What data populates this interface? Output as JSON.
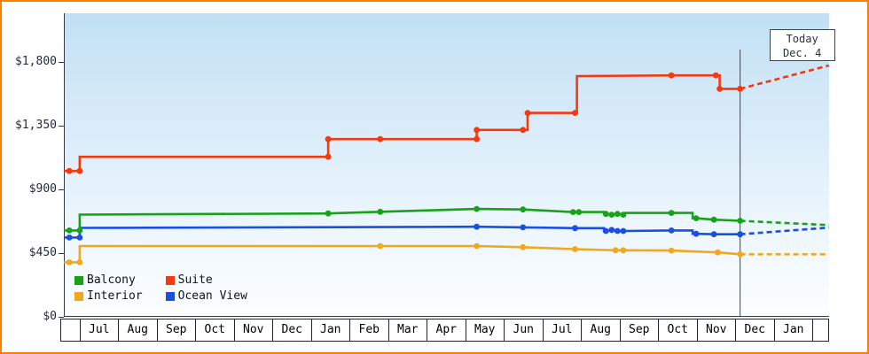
{
  "figure": {
    "border_color": "#ff7d00"
  },
  "chart_data": {
    "type": "line",
    "description": "Cruise cabin price history by category with dashed price forecast after today",
    "today": {
      "label_line1": "Today",
      "label_line2": "Dec. 4",
      "month_position": 17.13
    },
    "y_axis": {
      "ticks": [
        {
          "label": "$0",
          "value": 0
        },
        {
          "label": "$450",
          "value": 450
        },
        {
          "label": "$900",
          "value": 900
        },
        {
          "label": "$1,350",
          "value": 1350
        },
        {
          "label": "$1,800",
          "value": 1800
        }
      ],
      "max": 1800
    },
    "x_axis": {
      "months": [
        "Jul",
        "Aug",
        "Sep",
        "Oct",
        "Nov",
        "Dec",
        "Jan",
        "Feb",
        "Mar",
        "Apr",
        "May",
        "Jun",
        "Jul",
        "Aug",
        "Sep",
        "Oct",
        "Nov",
        "Dec",
        "Jan"
      ]
    },
    "plot_background_top": "#c2e0f4",
    "plot_background_bottom": "#fdfeff",
    "axis_color": "#333b4a",
    "today_line_color": "#3c4454",
    "legend": {
      "items": [
        "Balcony",
        "Suite",
        "Interior",
        "Ocean View"
      ]
    },
    "series": [
      {
        "name": "Interior",
        "color": "#f0a81f",
        "points": [
          [
            -0.4,
            385,
            0
          ],
          [
            -0.26,
            385,
            1
          ],
          [
            0.01,
            385,
            1
          ],
          [
            0.01,
            500,
            0
          ],
          [
            7.8,
            500,
            1
          ],
          [
            10.3,
            500,
            1
          ],
          [
            11.5,
            492,
            1
          ],
          [
            12.85,
            478,
            1
          ],
          [
            13.9,
            470,
            1
          ],
          [
            14.1,
            470,
            1
          ],
          [
            15.35,
            468,
            1
          ],
          [
            16.55,
            455,
            1
          ],
          [
            17.13,
            442,
            1
          ]
        ],
        "forecast": [
          [
            17.13,
            442
          ],
          [
            19.43,
            442
          ]
        ]
      },
      {
        "name": "Ocean View",
        "color": "#1b4fe0",
        "points": [
          [
            -0.4,
            560,
            0
          ],
          [
            -0.26,
            560,
            1
          ],
          [
            0.01,
            560,
            1
          ],
          [
            0.01,
            628,
            0
          ],
          [
            10.3,
            636,
            1
          ],
          [
            11.5,
            632,
            1
          ],
          [
            12.85,
            626,
            1
          ],
          [
            13.6,
            626,
            0
          ],
          [
            13.6,
            606,
            0
          ],
          [
            13.65,
            606,
            1
          ],
          [
            13.8,
            614,
            1
          ],
          [
            13.95,
            606,
            1
          ],
          [
            14.1,
            606,
            1
          ],
          [
            15.35,
            610,
            1
          ],
          [
            15.9,
            610,
            0
          ],
          [
            15.9,
            586,
            0
          ],
          [
            15.99,
            586,
            1
          ],
          [
            16.45,
            583,
            1
          ],
          [
            17.13,
            583,
            1
          ]
        ],
        "forecast": [
          [
            17.13,
            583
          ],
          [
            19.43,
            630
          ]
        ]
      },
      {
        "name": "Balcony",
        "color": "#17a317",
        "points": [
          [
            -0.4,
            610,
            0
          ],
          [
            -0.26,
            610,
            1
          ],
          [
            0.01,
            610,
            1
          ],
          [
            0.01,
            722,
            0
          ],
          [
            6.45,
            730,
            1
          ],
          [
            7.8,
            742,
            1
          ],
          [
            10.3,
            762,
            1
          ],
          [
            11.5,
            758,
            1
          ],
          [
            12.8,
            740,
            1
          ],
          [
            12.95,
            740,
            1
          ],
          [
            13.6,
            740,
            0
          ],
          [
            13.6,
            727,
            0
          ],
          [
            13.65,
            727,
            1
          ],
          [
            13.8,
            721,
            1
          ],
          [
            13.95,
            727,
            1
          ],
          [
            14.1,
            721,
            1
          ],
          [
            14.15,
            734,
            0
          ],
          [
            15.35,
            734,
            1
          ],
          [
            15.9,
            734,
            0
          ],
          [
            15.9,
            696,
            0
          ],
          [
            15.99,
            696,
            1
          ],
          [
            16.45,
            686,
            1
          ],
          [
            17.13,
            678,
            1
          ]
        ],
        "forecast": [
          [
            17.13,
            678
          ],
          [
            19.43,
            648
          ]
        ]
      },
      {
        "name": "Suite",
        "color": "#f5380e",
        "points": [
          [
            -0.4,
            1030,
            0
          ],
          [
            -0.26,
            1030,
            1
          ],
          [
            0.01,
            1030,
            1
          ],
          [
            0.01,
            1130,
            0
          ],
          [
            6.45,
            1130,
            1
          ],
          [
            6.45,
            1255,
            1
          ],
          [
            7.8,
            1255,
            1
          ],
          [
            10.3,
            1255,
            1
          ],
          [
            10.3,
            1320,
            1
          ],
          [
            11.5,
            1320,
            1
          ],
          [
            11.62,
            1320,
            0
          ],
          [
            11.62,
            1440,
            1
          ],
          [
            12.85,
            1440,
            1
          ],
          [
            12.9,
            1440,
            0
          ],
          [
            12.9,
            1700,
            0
          ],
          [
            15.35,
            1705,
            1
          ],
          [
            16.5,
            1705,
            1
          ],
          [
            16.6,
            1705,
            0
          ],
          [
            16.6,
            1610,
            1
          ],
          [
            17.13,
            1610,
            1
          ]
        ],
        "forecast": [
          [
            17.13,
            1610
          ],
          [
            19.43,
            1775
          ]
        ]
      }
    ]
  }
}
